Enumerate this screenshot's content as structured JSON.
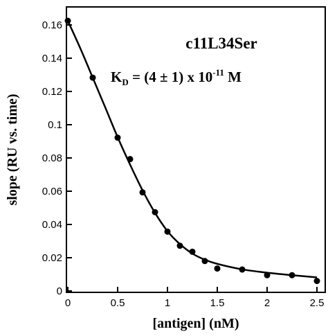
{
  "chart_data": {
    "type": "scatter",
    "xlabel": "[antigen] (nM)",
    "ylabel": "slope (RU vs. time)",
    "xlim": [
      0,
      2.5
    ],
    "ylim": [
      0,
      0.16
    ],
    "x_ticks": [
      "0",
      "0.5",
      "1",
      "1.5",
      "2",
      "2.5"
    ],
    "y_ticks": [
      "0",
      "0.02",
      "0.04",
      "0.06",
      "0.08",
      "0.1",
      "0.12",
      "0.14",
      "0.16"
    ],
    "grid": false,
    "legend": "none",
    "annotations": {
      "title": "c11L34Ser",
      "kd_prefix": "K",
      "kd_subscript": "D",
      "kd_middle": " = (4 ± 1) x 10",
      "kd_exponent": "-11",
      "kd_unit": " M"
    },
    "series": [
      {
        "points": [
          {
            "x": 0.0,
            "y": 0.1625
          },
          {
            "x": 0.25,
            "y": 0.1283
          },
          {
            "x": 0.5,
            "y": 0.0922
          },
          {
            "x": 0.625,
            "y": 0.0793
          },
          {
            "x": 0.75,
            "y": 0.0593
          },
          {
            "x": 0.875,
            "y": 0.0474
          },
          {
            "x": 1.0,
            "y": 0.0357
          },
          {
            "x": 1.125,
            "y": 0.0272
          },
          {
            "x": 1.25,
            "y": 0.0236
          },
          {
            "x": 1.375,
            "y": 0.018
          },
          {
            "x": 1.5,
            "y": 0.0135
          },
          {
            "x": 1.75,
            "y": 0.0129
          },
          {
            "x": 2.0,
            "y": 0.0095
          },
          {
            "x": 2.25,
            "y": 0.0095
          },
          {
            "x": 2.5,
            "y": 0.006
          }
        ],
        "fit_curve": [
          {
            "x": 0.0,
            "y": 0.1625
          },
          {
            "x": 0.125,
            "y": 0.146
          },
          {
            "x": 0.25,
            "y": 0.1283
          },
          {
            "x": 0.375,
            "y": 0.1105
          },
          {
            "x": 0.5,
            "y": 0.0925
          },
          {
            "x": 0.625,
            "y": 0.076
          },
          {
            "x": 0.75,
            "y": 0.0605
          },
          {
            "x": 0.875,
            "y": 0.047
          },
          {
            "x": 1.0,
            "y": 0.036
          },
          {
            "x": 1.125,
            "y": 0.0282
          },
          {
            "x": 1.25,
            "y": 0.0225
          },
          {
            "x": 1.375,
            "y": 0.0188
          },
          {
            "x": 1.5,
            "y": 0.0163
          },
          {
            "x": 1.75,
            "y": 0.013
          },
          {
            "x": 2.0,
            "y": 0.011
          },
          {
            "x": 2.25,
            "y": 0.0095
          },
          {
            "x": 2.5,
            "y": 0.0082
          }
        ]
      }
    ]
  }
}
